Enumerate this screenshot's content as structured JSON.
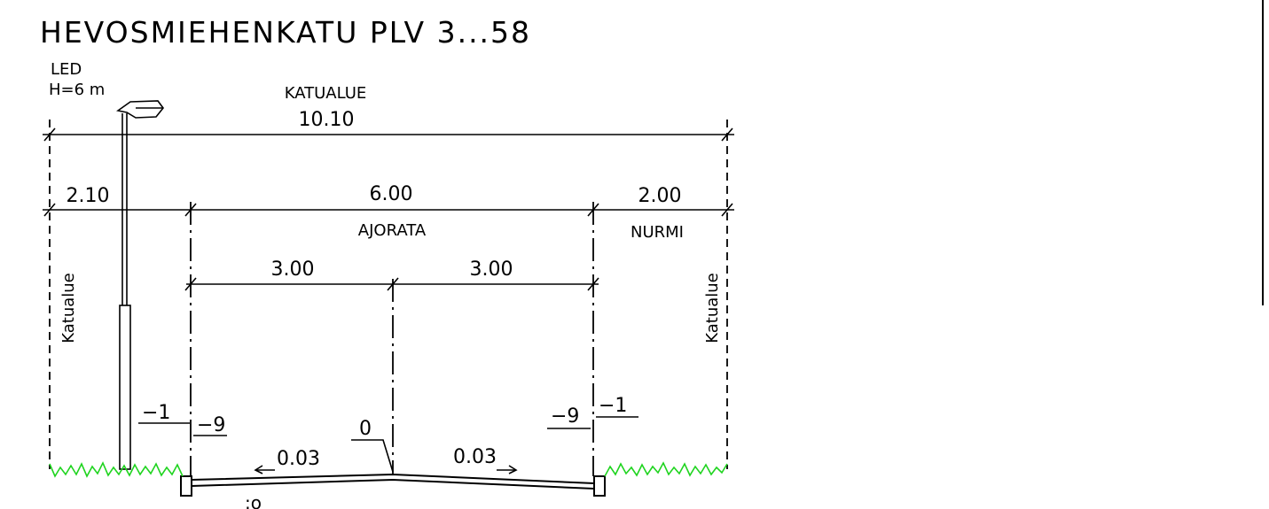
{
  "drawing": {
    "title": "HEVOSMIEHENKATU PLV 3...58",
    "lamp": {
      "type": "LED",
      "height": "H=6 m"
    },
    "total": {
      "label": "KATUALUE",
      "width": "10.10"
    },
    "sections": {
      "left_width": "2.10",
      "carriageway_width": "6.00",
      "carriageway_label": "AJORATA",
      "right_width": "2.00",
      "right_label": "NURMI"
    },
    "lanes": {
      "left": "3.00",
      "right": "3.00"
    },
    "boundary_left": "Katualue",
    "boundary_right": "Katualue",
    "levels": {
      "left_outer": "−1",
      "left_inner": "−9",
      "center": "0",
      "right_inner": "−9",
      "right_outer": "−1"
    },
    "slopes": {
      "left": "0.03",
      "right": "0.03"
    },
    "bottom_note": ":o"
  }
}
